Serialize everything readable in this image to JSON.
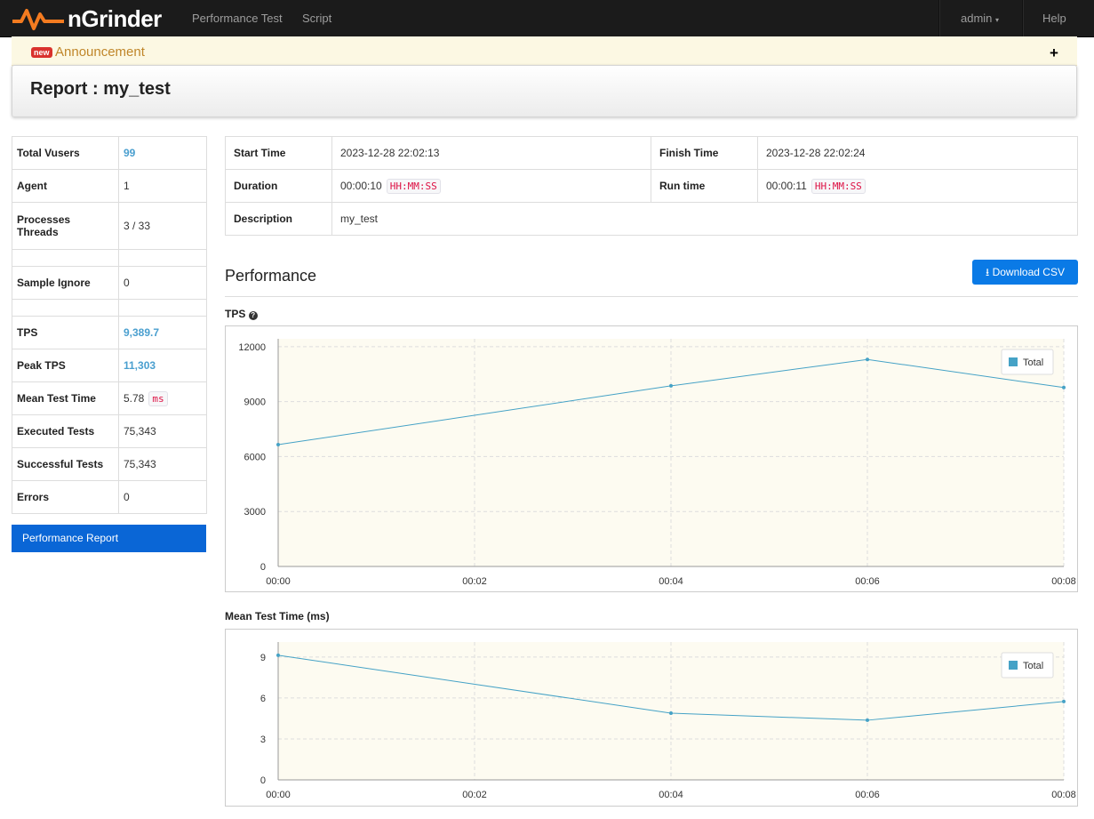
{
  "navbar": {
    "brand": "nGrinder",
    "links": [
      "Performance Test",
      "Script"
    ],
    "user": "admin",
    "help": "Help"
  },
  "announcement": {
    "badge": "new",
    "label": "Announcement",
    "toggle": "+"
  },
  "header": {
    "title": "Report : my_test"
  },
  "summary": {
    "rows": [
      {
        "label": "Total Vusers",
        "value": "99"
      },
      {
        "label": "Agent",
        "value": "1"
      },
      {
        "label": "Processes Threads",
        "value": "3 / 33"
      },
      {
        "label": "Sample Ignore",
        "value": "0"
      },
      {
        "label": "TPS",
        "value": "9,389.7"
      },
      {
        "label": "Peak TPS",
        "value": "11,303"
      },
      {
        "label": "Mean Test Time",
        "value": "5.78",
        "unit": "ms"
      },
      {
        "label": "Executed Tests",
        "value": "75,343"
      },
      {
        "label": "Successful Tests",
        "value": "75,343"
      },
      {
        "label": "Errors",
        "value": "0"
      }
    ]
  },
  "menu": {
    "items": [
      "Performance Report"
    ]
  },
  "info": {
    "start_label": "Start Time",
    "start": "2023-12-28 22:02:13",
    "finish_label": "Finish Time",
    "finish": "2023-12-28 22:02:24",
    "duration_label": "Duration",
    "duration": "00:00:10",
    "duration_unit": "HH:MM:SS",
    "runtime_label": "Run time",
    "runtime": "00:00:11",
    "runtime_unit": "HH:MM:SS",
    "description_label": "Description",
    "description": "my_test"
  },
  "performance": {
    "title": "Performance",
    "download": "Download CSV"
  },
  "chart_data": [
    {
      "type": "line",
      "title": "TPS",
      "x": [
        0,
        4,
        6,
        8
      ],
      "series": [
        {
          "name": "Total",
          "color": "#45a2c6",
          "values": [
            6650,
            9860,
            11303,
            9770
          ]
        }
      ],
      "xlim": [
        0,
        8
      ],
      "xticks": [
        {
          "value": 0,
          "label": "00:00"
        },
        {
          "value": 2,
          "label": "00:02"
        },
        {
          "value": 4,
          "label": "00:04"
        },
        {
          "value": 6,
          "label": "00:06"
        },
        {
          "value": 8,
          "label": "00:08"
        }
      ],
      "ylim": [
        0,
        12430
      ],
      "yticks": [
        0,
        3000,
        6000,
        9000,
        12000
      ],
      "grid": true,
      "legend": "top-right"
    },
    {
      "type": "line",
      "title": "Mean Test Time (ms)",
      "x": [
        0,
        4,
        6,
        8
      ],
      "series": [
        {
          "name": "Total",
          "color": "#45a2c6",
          "values": [
            9.13,
            4.89,
            4.37,
            5.74
          ]
        }
      ],
      "xlim": [
        0,
        8
      ],
      "xticks": [
        {
          "value": 0,
          "label": "00:00"
        },
        {
          "value": 2,
          "label": "00:02"
        },
        {
          "value": 4,
          "label": "00:04"
        },
        {
          "value": 6,
          "label": "00:06"
        },
        {
          "value": 8,
          "label": "00:08"
        }
      ],
      "ylim": [
        0,
        10.1
      ],
      "yticks": [
        0,
        3,
        6,
        9
      ],
      "grid": true,
      "legend": "top-right"
    }
  ]
}
